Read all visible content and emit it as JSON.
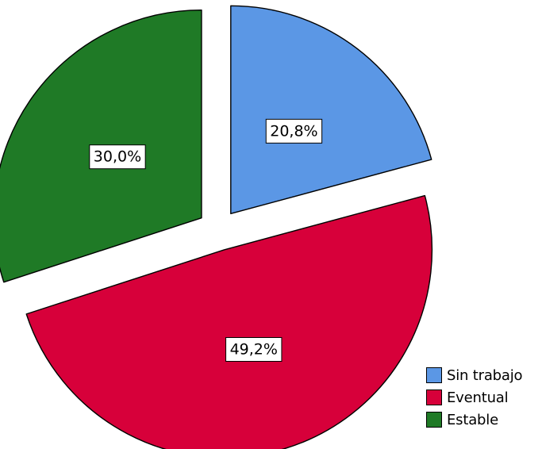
{
  "chart_data": {
    "type": "pie",
    "title": "",
    "slices": [
      {
        "name": "Sin trabajo",
        "value": 20.8,
        "label": "20,8%",
        "color": "#5B97E5",
        "exploded": true
      },
      {
        "name": "Eventual",
        "value": 49.2,
        "label": "49,2%",
        "color": "#D7003A",
        "exploded": true
      },
      {
        "name": "Estable",
        "value": 30.0,
        "label": "30,0%",
        "color": "#1F7A26",
        "exploded": true
      }
    ],
    "start_angle_deg": 0,
    "direction": "clockwise",
    "legend_position": "bottom-right"
  },
  "legend": {
    "items": [
      {
        "label": "Sin trabajo",
        "color": "#5B97E5"
      },
      {
        "label": "Eventual",
        "color": "#D7003A"
      },
      {
        "label": "Estable",
        "color": "#1F7A26"
      }
    ]
  }
}
